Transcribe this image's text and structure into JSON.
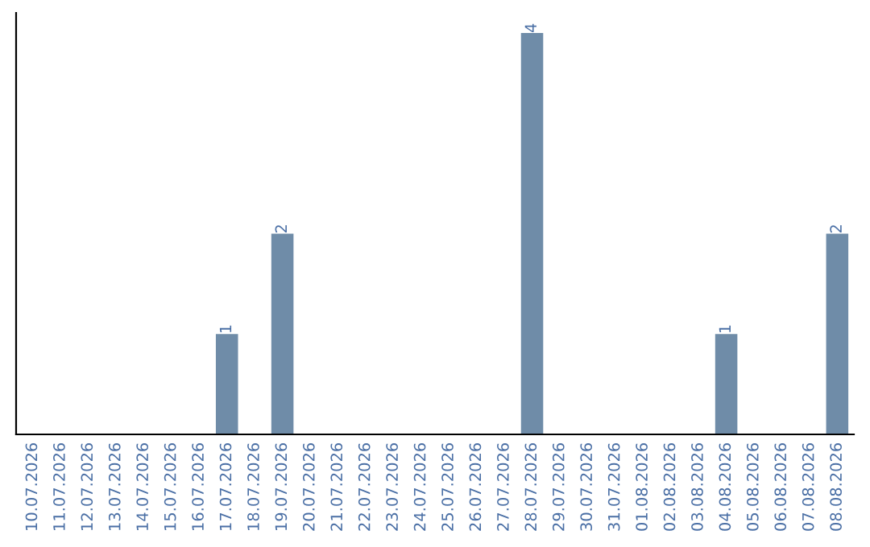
{
  "chart_data": {
    "type": "bar",
    "categories": [
      "10.07.2026",
      "11.07.2026",
      "12.07.2026",
      "13.07.2026",
      "14.07.2026",
      "15.07.2026",
      "16.07.2026",
      "17.07.2026",
      "18.07.2026",
      "19.07.2026",
      "20.07.2026",
      "21.07.2026",
      "22.07.2026",
      "23.07.2026",
      "24.07.2026",
      "25.07.2026",
      "26.07.2026",
      "27.07.2026",
      "28.07.2026",
      "29.07.2026",
      "30.07.2026",
      "31.07.2026",
      "01.08.2026",
      "02.08.2026",
      "03.08.2026",
      "04.08.2026",
      "05.08.2026",
      "06.08.2026",
      "07.08.2026",
      "08.08.2026"
    ],
    "values": [
      0,
      0,
      0,
      0,
      0,
      0,
      0,
      1,
      0,
      2,
      0,
      0,
      0,
      0,
      0,
      0,
      0,
      0,
      4,
      0,
      0,
      0,
      0,
      0,
      0,
      1,
      0,
      0,
      0,
      2
    ],
    "value_labels": [
      null,
      null,
      null,
      null,
      null,
      null,
      null,
      "1",
      null,
      "2",
      null,
      null,
      null,
      null,
      null,
      null,
      null,
      null,
      "4",
      null,
      null,
      null,
      null,
      null,
      null,
      "1",
      null,
      null,
      null,
      "2"
    ],
    "color": "#6f8ca8",
    "ylim": [
      0,
      4.2
    ],
    "tick_labels": "x",
    "grid": false,
    "legend": false
  }
}
